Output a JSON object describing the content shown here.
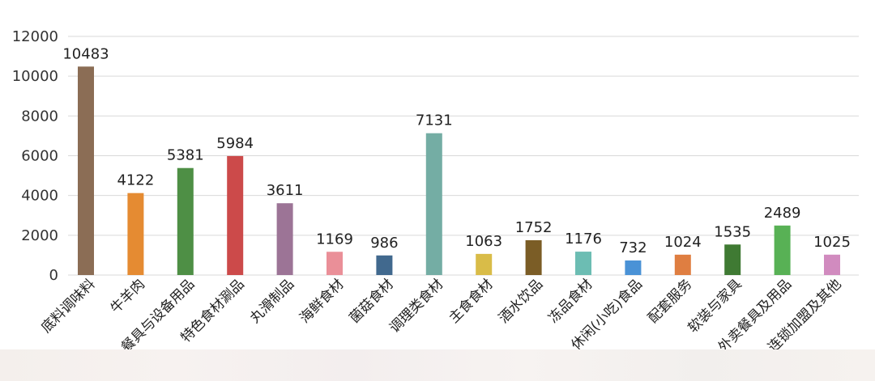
{
  "chart_data": {
    "type": "bar",
    "title": "",
    "xlabel": "",
    "ylabel": "",
    "ylim": [
      0,
      12000
    ],
    "yticks": [
      0,
      2000,
      4000,
      6000,
      8000,
      10000,
      12000
    ],
    "grid": true,
    "categories": [
      "底料调味料",
      "牛羊肉",
      "餐具与设备用品",
      "特色食材涮品",
      "丸滑制品",
      "海鲜食材",
      "菌菇食材",
      "调理类食材",
      "主食食材",
      "酒水饮品",
      "冻品食材",
      "休闲(小吃)食品",
      "配套服务",
      "软装与家具",
      "外卖餐具及用品",
      "连锁加盟及其他"
    ],
    "values": [
      10483,
      4122,
      5381,
      5984,
      3611,
      1169,
      986,
      7131,
      1063,
      1752,
      1176,
      732,
      1024,
      1535,
      2489,
      1025
    ],
    "colors": [
      "#8b6d55",
      "#e58b32",
      "#4e8f45",
      "#cc4a4a",
      "#9c7496",
      "#ea8f98",
      "#41698e",
      "#74ada4",
      "#d9bc48",
      "#7b5d26",
      "#6cbdb3",
      "#4a92d6",
      "#df7e41",
      "#3f7a33",
      "#58b155",
      "#d18bbf"
    ]
  }
}
